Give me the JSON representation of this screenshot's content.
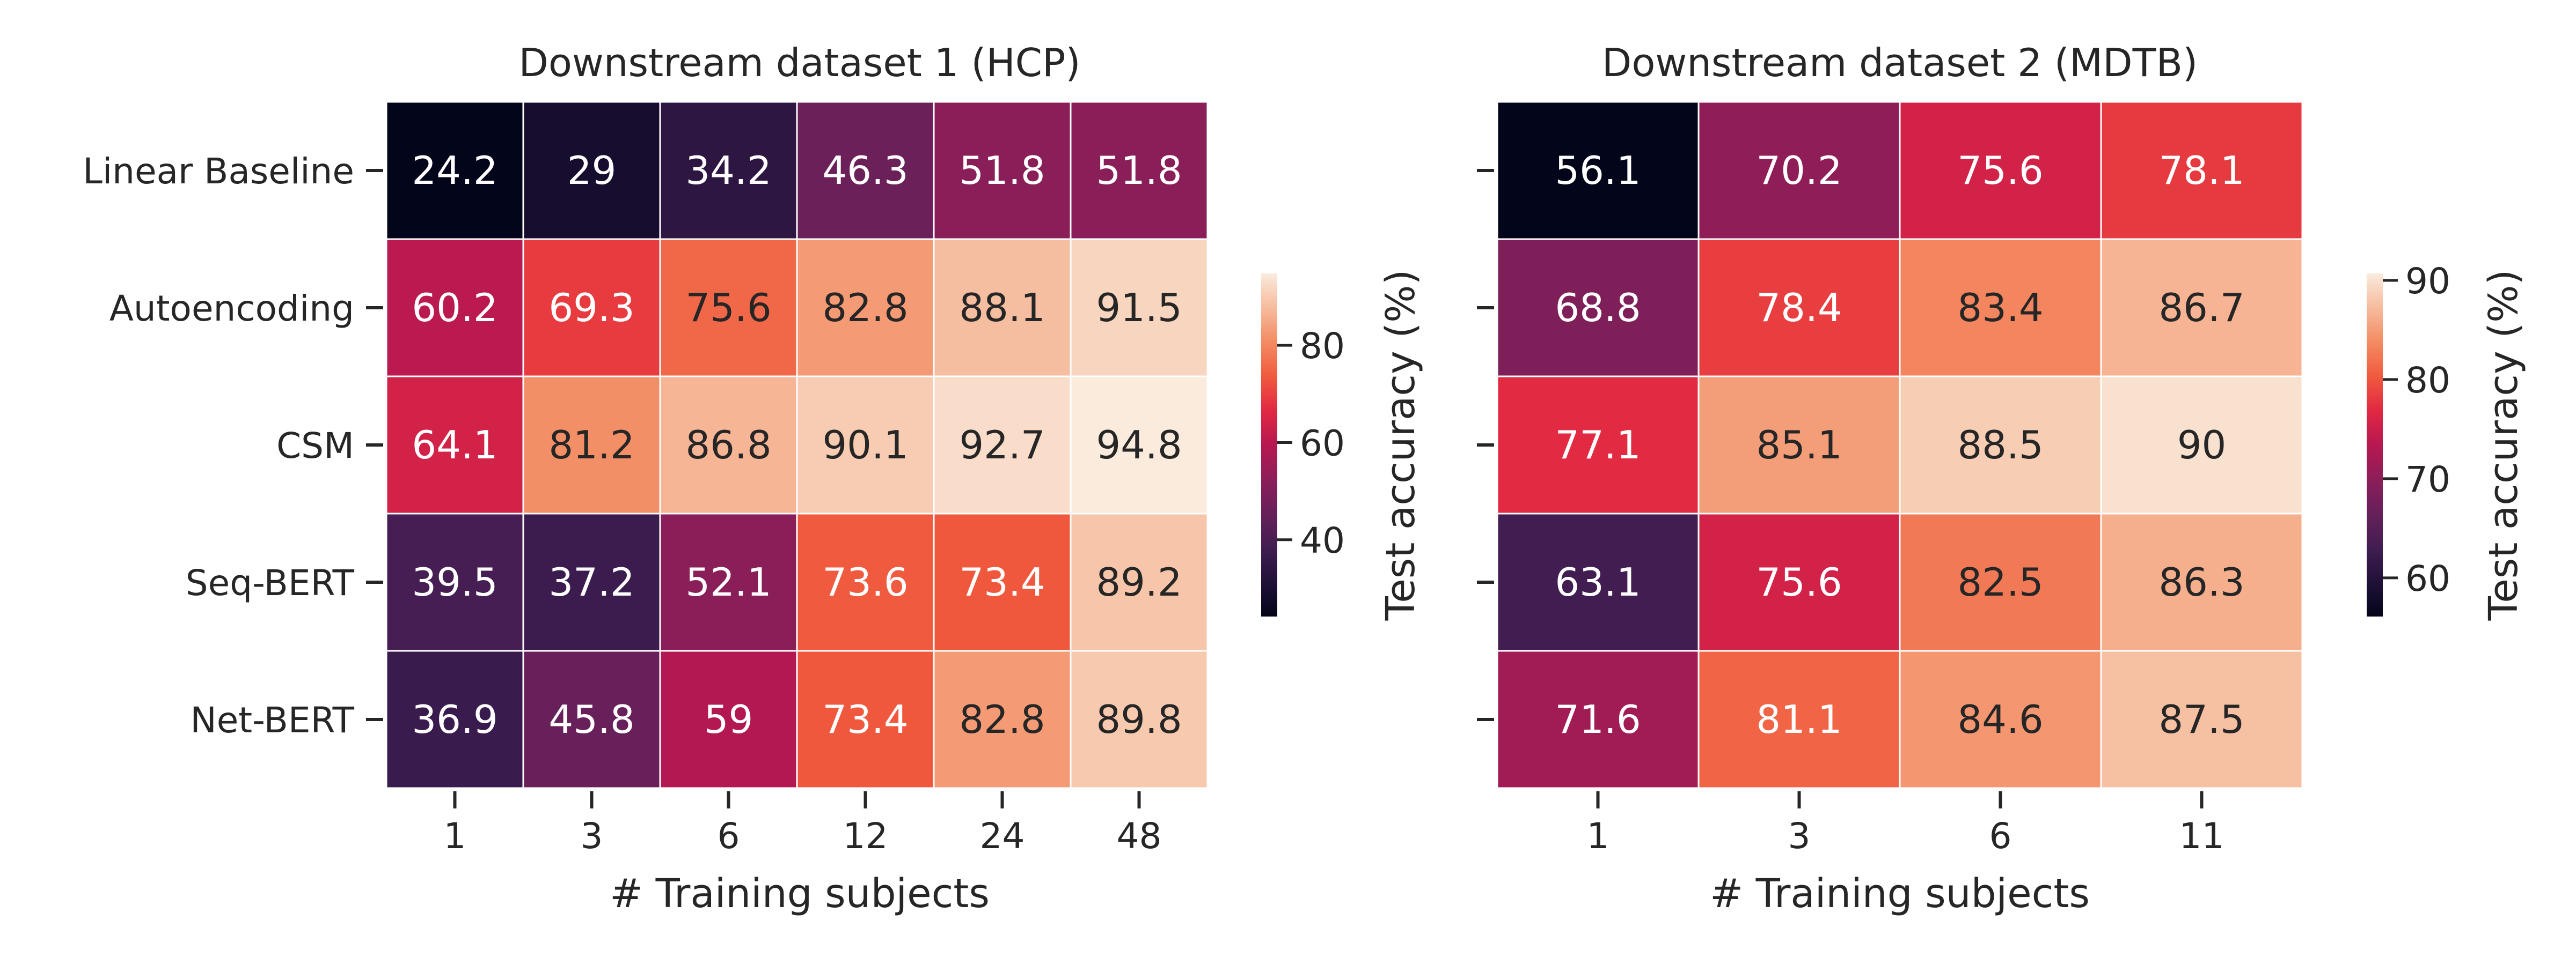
{
  "chart_data": [
    {
      "type": "heatmap",
      "title": "Downstream dataset 1 (HCP)",
      "xlabel": "# Training subjects",
      "ylabel": "",
      "x": [
        "1",
        "3",
        "6",
        "12",
        "24",
        "48"
      ],
      "y": [
        "Linear Baseline",
        "Autoencoding",
        "CSM",
        "Seq-BERT",
        "Net-BERT"
      ],
      "values": [
        [
          24.2,
          29,
          34.2,
          46.3,
          51.8,
          51.8
        ],
        [
          60.2,
          69.3,
          75.6,
          82.8,
          88.1,
          91.5
        ],
        [
          64.1,
          81.2,
          86.8,
          90.1,
          92.7,
          94.8
        ],
        [
          39.5,
          37.2,
          52.1,
          73.6,
          73.4,
          89.2
        ],
        [
          36.9,
          45.8,
          59,
          73.4,
          82.8,
          89.8
        ]
      ],
      "colorbar": {
        "label": "Test accuracy (%)",
        "ticks": [
          40,
          60,
          80
        ],
        "range": [
          24.2,
          94.8
        ],
        "colormap": "rocket"
      }
    },
    {
      "type": "heatmap",
      "title": "Downstream dataset 2 (MDTB)",
      "xlabel": "# Training subjects",
      "ylabel": "",
      "x": [
        "1",
        "3",
        "6",
        "11"
      ],
      "y": [
        "Linear Baseline",
        "Autoencoding",
        "CSM",
        "Seq-BERT",
        "Net-BERT"
      ],
      "values": [
        [
          56.1,
          70.2,
          75.6,
          78.1
        ],
        [
          68.8,
          78.4,
          83.4,
          86.7
        ],
        [
          77.1,
          85.1,
          88.5,
          90
        ],
        [
          63.1,
          75.6,
          82.5,
          86.3
        ],
        [
          71.6,
          81.1,
          84.6,
          87.5
        ]
      ],
      "colorbar": {
        "label": "Test accuracy (%)",
        "ticks": [
          60,
          70,
          80,
          90
        ],
        "range": [
          56.1,
          90.7
        ],
        "colormap": "rocket"
      },
      "y_tick_labels_shown": false
    }
  ]
}
